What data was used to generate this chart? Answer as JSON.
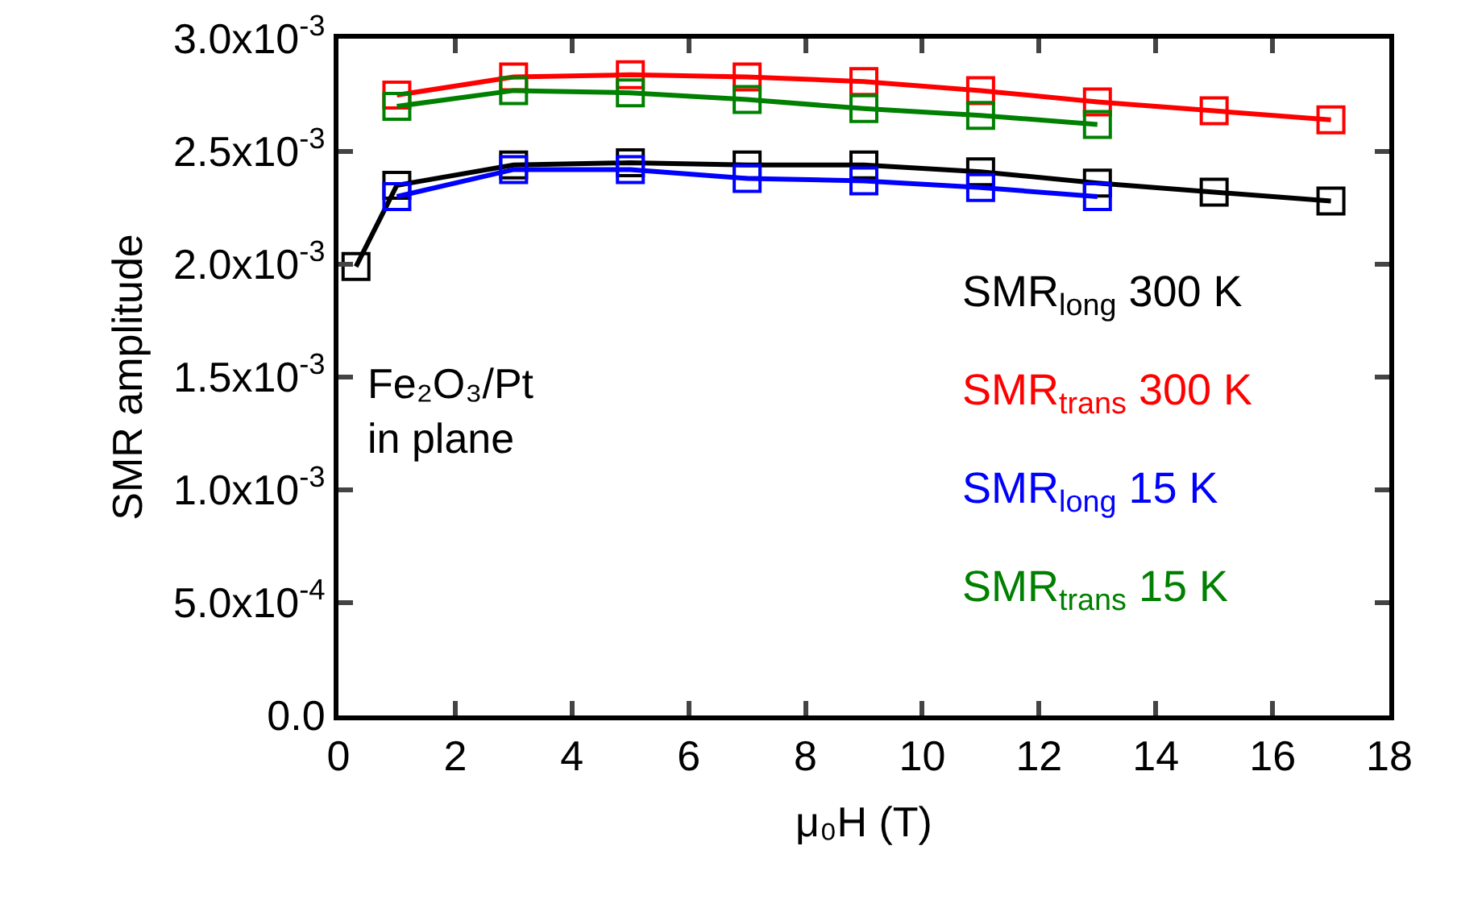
{
  "chart_data": {
    "type": "line",
    "xlabel": "μ₀H (T)",
    "ylabel": "SMR amplitude",
    "xlim": [
      0,
      18
    ],
    "xticks": [
      0,
      2,
      4,
      6,
      8,
      10,
      12,
      14,
      16,
      18
    ],
    "ylim": [
      0,
      0.003
    ],
    "yticks": [
      {
        "value": 0,
        "label": "0.0"
      },
      {
        "value": 0.0005,
        "label": "5.0x10$^{-4}$"
      },
      {
        "value": 0.001,
        "label": "1.0x10$^{-3}$"
      },
      {
        "value": 0.0015,
        "label": "1.5x10$^{-3}$"
      },
      {
        "value": 0.002,
        "label": "2.0x10$^{-3}$"
      },
      {
        "value": 0.0025,
        "label": "2.5x10$^{-3}$"
      },
      {
        "value": 0.003,
        "label": "3.0x10$^{-3}$"
      }
    ],
    "grid": false,
    "legend": false,
    "marker": "square",
    "line_style": "solid",
    "series": [
      {
        "name": "SMR$_{long}$ 300 K",
        "color": "#000000",
        "x": [
          0.3,
          1,
          3,
          5,
          7,
          9,
          11,
          13,
          15,
          17
        ],
        "values": [
          0.00199,
          0.00235,
          0.00244,
          0.00245,
          0.00244,
          0.00244,
          0.00241,
          0.00236,
          0.00232,
          0.00228
        ]
      },
      {
        "name": "SMR$_{trans}$ 300 K",
        "color": "#ff0000",
        "x": [
          1,
          3,
          5,
          7,
          9,
          11,
          13,
          15,
          17
        ],
        "values": [
          0.00275,
          0.00283,
          0.00284,
          0.00283,
          0.00281,
          0.00277,
          0.00272,
          0.00268,
          0.00264
        ]
      },
      {
        "name": "SMR$_{long}$ 15 K",
        "color": "#0000ff",
        "x": [
          1,
          3,
          5,
          7,
          9,
          11,
          13
        ],
        "values": [
          0.0023,
          0.00242,
          0.00242,
          0.00238,
          0.00237,
          0.00234,
          0.0023
        ]
      },
      {
        "name": "SMR$_{trans}$ 15 K",
        "color": "#008000",
        "x": [
          1,
          3,
          5,
          7,
          9,
          11,
          13
        ],
        "values": [
          0.0027,
          0.00277,
          0.00276,
          0.00273,
          0.00269,
          0.00266,
          0.00262
        ]
      }
    ],
    "annotations": [
      "Fe₂O₃/Pt\nin plane"
    ]
  }
}
